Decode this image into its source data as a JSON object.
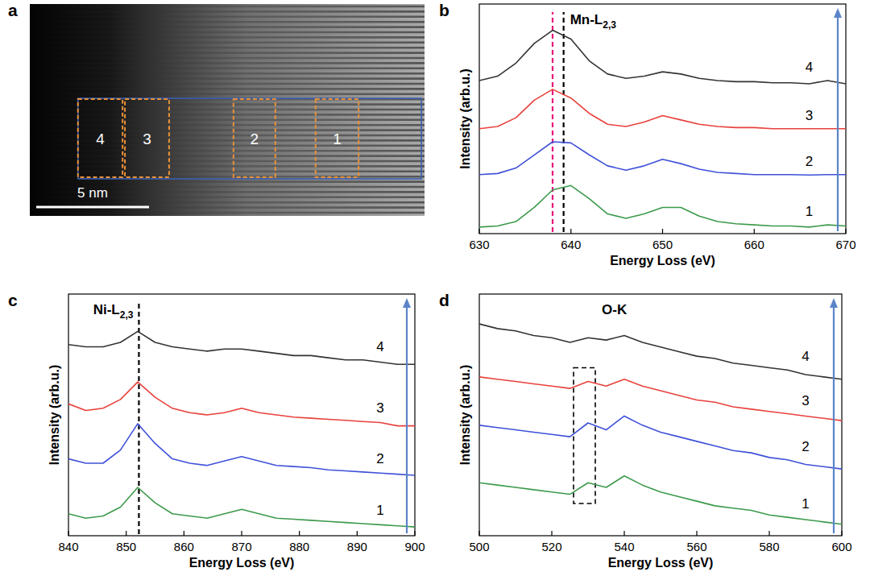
{
  "chart_data": [
    {
      "type": "image",
      "panel": "a",
      "scale_bar": "5 nm",
      "regions": [
        "4",
        "3",
        "2",
        "1"
      ]
    },
    {
      "type": "line",
      "panel": "b",
      "annotation": {
        "text": "Mn-L",
        "subscript": "2,3"
      },
      "x_label": "Energy Loss (eV)",
      "y_label": "Intensity (arb.u.)",
      "x": [
        630,
        632,
        634,
        636,
        638,
        640,
        642,
        644,
        646,
        648,
        650,
        652,
        654,
        656,
        658,
        660,
        662,
        664,
        666,
        668,
        670
      ],
      "xlim": [
        630,
        670
      ],
      "xticks": [
        630,
        640,
        650,
        660,
        670
      ],
      "ylim": [
        0,
        10.5
      ],
      "tick_labels": "x",
      "grid": false,
      "reference_lines": [
        {
          "x": 639.2,
          "color": "#000000",
          "line_style": "dashed"
        },
        {
          "x": 638,
          "color": "#e8127c",
          "line_style": "dashed"
        }
      ],
      "series": [
        {
          "name": "1",
          "color": "#3c9a4b",
          "values": [
            0.3,
            0.35,
            0.55,
            1.2,
            2.0,
            2.2,
            1.6,
            0.9,
            0.7,
            0.9,
            1.2,
            1.2,
            0.8,
            0.55,
            0.45,
            0.4,
            0.35,
            0.35,
            0.3,
            0.4,
            0.35
          ]
        },
        {
          "name": "2",
          "color": "#3f51d8",
          "values": [
            2.7,
            2.75,
            3.0,
            3.6,
            4.2,
            4.15,
            3.6,
            3.1,
            2.9,
            3.1,
            3.4,
            3.2,
            2.95,
            2.8,
            2.75,
            2.7,
            2.7,
            2.7,
            2.68,
            2.7,
            2.7
          ]
        },
        {
          "name": "3",
          "color": "#e8413c",
          "values": [
            4.8,
            4.9,
            5.3,
            6.1,
            6.6,
            6.2,
            5.5,
            5.0,
            4.9,
            5.1,
            5.4,
            5.2,
            5.0,
            4.9,
            4.85,
            4.85,
            4.8,
            4.8,
            4.8,
            4.8,
            4.8
          ]
        },
        {
          "name": "4",
          "color": "#333333",
          "values": [
            7.0,
            7.2,
            7.8,
            8.7,
            9.3,
            8.9,
            7.9,
            7.3,
            7.1,
            7.2,
            7.4,
            7.3,
            7.1,
            7.0,
            6.95,
            6.95,
            6.9,
            6.9,
            6.85,
            7.0,
            6.85
          ]
        }
      ]
    },
    {
      "type": "line",
      "panel": "c",
      "annotation": {
        "text": "Ni-L",
        "subscript": "2,3"
      },
      "x_label": "Energy Loss (eV)",
      "y_label": "Intensity (arb.u.)",
      "x": [
        840,
        843,
        846,
        849,
        852,
        855,
        858,
        861,
        864,
        867,
        870,
        873,
        876,
        879,
        882,
        885,
        888,
        891,
        894,
        897,
        900
      ],
      "xlim": [
        840,
        900
      ],
      "xticks": [
        840,
        850,
        860,
        870,
        880,
        890,
        900
      ],
      "ylim": [
        0,
        11
      ],
      "tick_labels": "x",
      "grid": false,
      "reference_lines": [
        {
          "x": 852.2,
          "color": "#000000",
          "line_style": "dashed"
        }
      ],
      "series": [
        {
          "name": "1",
          "color": "#3c9a4b",
          "values": [
            1.0,
            0.8,
            0.9,
            1.3,
            2.2,
            1.5,
            1.0,
            0.9,
            0.8,
            1.0,
            1.2,
            1.0,
            0.8,
            0.75,
            0.7,
            0.65,
            0.6,
            0.55,
            0.5,
            0.45,
            0.4
          ]
        },
        {
          "name": "2",
          "color": "#3f51d8",
          "values": [
            3.5,
            3.3,
            3.3,
            3.9,
            5.1,
            4.2,
            3.5,
            3.3,
            3.2,
            3.4,
            3.6,
            3.4,
            3.2,
            3.15,
            3.1,
            3.0,
            2.95,
            2.9,
            2.85,
            2.8,
            2.75
          ]
        },
        {
          "name": "3",
          "color": "#e8413c",
          "values": [
            6.0,
            5.7,
            5.8,
            6.2,
            7.0,
            6.3,
            5.8,
            5.6,
            5.5,
            5.6,
            5.8,
            5.6,
            5.5,
            5.4,
            5.35,
            5.3,
            5.25,
            5.2,
            5.15,
            5.0,
            5.0
          ]
        },
        {
          "name": "4",
          "color": "#333333",
          "values": [
            8.7,
            8.6,
            8.6,
            8.8,
            9.3,
            8.8,
            8.6,
            8.5,
            8.4,
            8.5,
            8.5,
            8.4,
            8.3,
            8.2,
            8.2,
            8.1,
            8.0,
            8.0,
            7.9,
            7.8,
            7.8
          ]
        }
      ]
    },
    {
      "type": "line",
      "panel": "d",
      "annotation": {
        "text": "O-K"
      },
      "x_label": "Energy Loss (eV)",
      "y_label": "Intensity (arb.u.)",
      "x": [
        500,
        505,
        510,
        515,
        520,
        525,
        530,
        535,
        540,
        545,
        550,
        555,
        560,
        565,
        570,
        575,
        580,
        585,
        590,
        595,
        600
      ],
      "xlim": [
        500,
        600
      ],
      "xticks": [
        500,
        520,
        540,
        560,
        580,
        600
      ],
      "ylim": [
        0,
        10.5
      ],
      "tick_labels": "x",
      "grid": false,
      "highlight_box": {
        "x": [
          526,
          532
        ],
        "y": [
          1.4,
          7.3
        ],
        "line_style": "dashed"
      },
      "series": [
        {
          "name": "1",
          "color": "#3c9a4b",
          "values": [
            2.3,
            2.2,
            2.1,
            2.0,
            1.9,
            1.8,
            2.3,
            2.1,
            2.6,
            2.2,
            1.9,
            1.7,
            1.5,
            1.3,
            1.2,
            1.1,
            0.9,
            0.8,
            0.7,
            0.6,
            0.5
          ]
        },
        {
          "name": "2",
          "color": "#3f51d8",
          "values": [
            4.8,
            4.7,
            4.6,
            4.5,
            4.4,
            4.3,
            4.9,
            4.6,
            5.2,
            4.8,
            4.5,
            4.3,
            4.1,
            3.9,
            3.7,
            3.6,
            3.4,
            3.3,
            3.1,
            3.0,
            2.9
          ]
        },
        {
          "name": "3",
          "color": "#e8413c",
          "values": [
            6.9,
            6.8,
            6.7,
            6.6,
            6.5,
            6.4,
            6.7,
            6.5,
            6.8,
            6.5,
            6.3,
            6.1,
            5.9,
            5.8,
            5.6,
            5.5,
            5.4,
            5.3,
            5.2,
            5.1,
            5.0
          ]
        },
        {
          "name": "4",
          "color": "#333333",
          "values": [
            9.2,
            9.0,
            8.9,
            8.7,
            8.6,
            8.4,
            8.6,
            8.5,
            8.7,
            8.4,
            8.2,
            8.0,
            7.8,
            7.7,
            7.5,
            7.4,
            7.3,
            7.2,
            7.0,
            6.9,
            6.8
          ]
        }
      ]
    }
  ]
}
